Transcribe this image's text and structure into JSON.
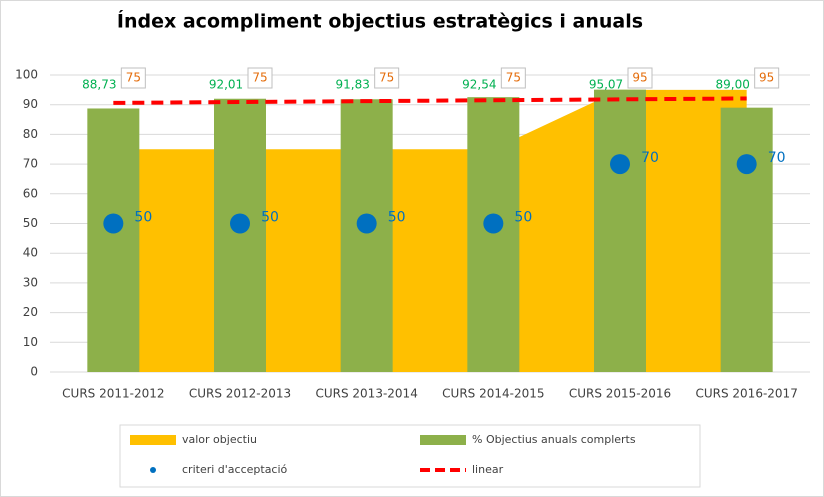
{
  "chart_data": {
    "type": "combo",
    "title": "Índex acompliment objectius estratègics i anuals",
    "categories": [
      "CURS 2011-2012",
      "CURS 2012-2013",
      "CURS 2013-2014",
      "CURS 2014-2015",
      "CURS 2015-2016",
      "CURS 2016-2017"
    ],
    "ylim": [
      0,
      100
    ],
    "yticks": [
      0,
      10,
      20,
      30,
      40,
      50,
      60,
      70,
      80,
      90,
      100
    ],
    "grid": true,
    "legend": "bottom",
    "series": [
      {
        "name": "valor objectiu",
        "type": "area",
        "color": "#ffc000",
        "label_color": "#e46c0a",
        "values": [
          75,
          75,
          75,
          75,
          95,
          95
        ]
      },
      {
        "name": "% Objectius anuals complerts",
        "type": "bar",
        "color": "#8db04a",
        "label_color": "#00b050",
        "values": [
          88.73,
          92.01,
          91.83,
          92.54,
          95.07,
          89.0
        ],
        "value_labels": [
          "88,73",
          "92,01",
          "91,83",
          "92,54",
          "95,07",
          "89,00"
        ]
      },
      {
        "name": "criteri d'acceptació",
        "type": "scatter",
        "color": "#0070c0",
        "label_color": "#0070c0",
        "values": [
          50,
          50,
          50,
          50,
          70,
          70
        ]
      },
      {
        "name": "linear",
        "type": "line",
        "color": "#ff0000",
        "dashed": true,
        "values": [
          90.6,
          90.9,
          91.2,
          91.5,
          91.8,
          92.1
        ]
      }
    ]
  }
}
